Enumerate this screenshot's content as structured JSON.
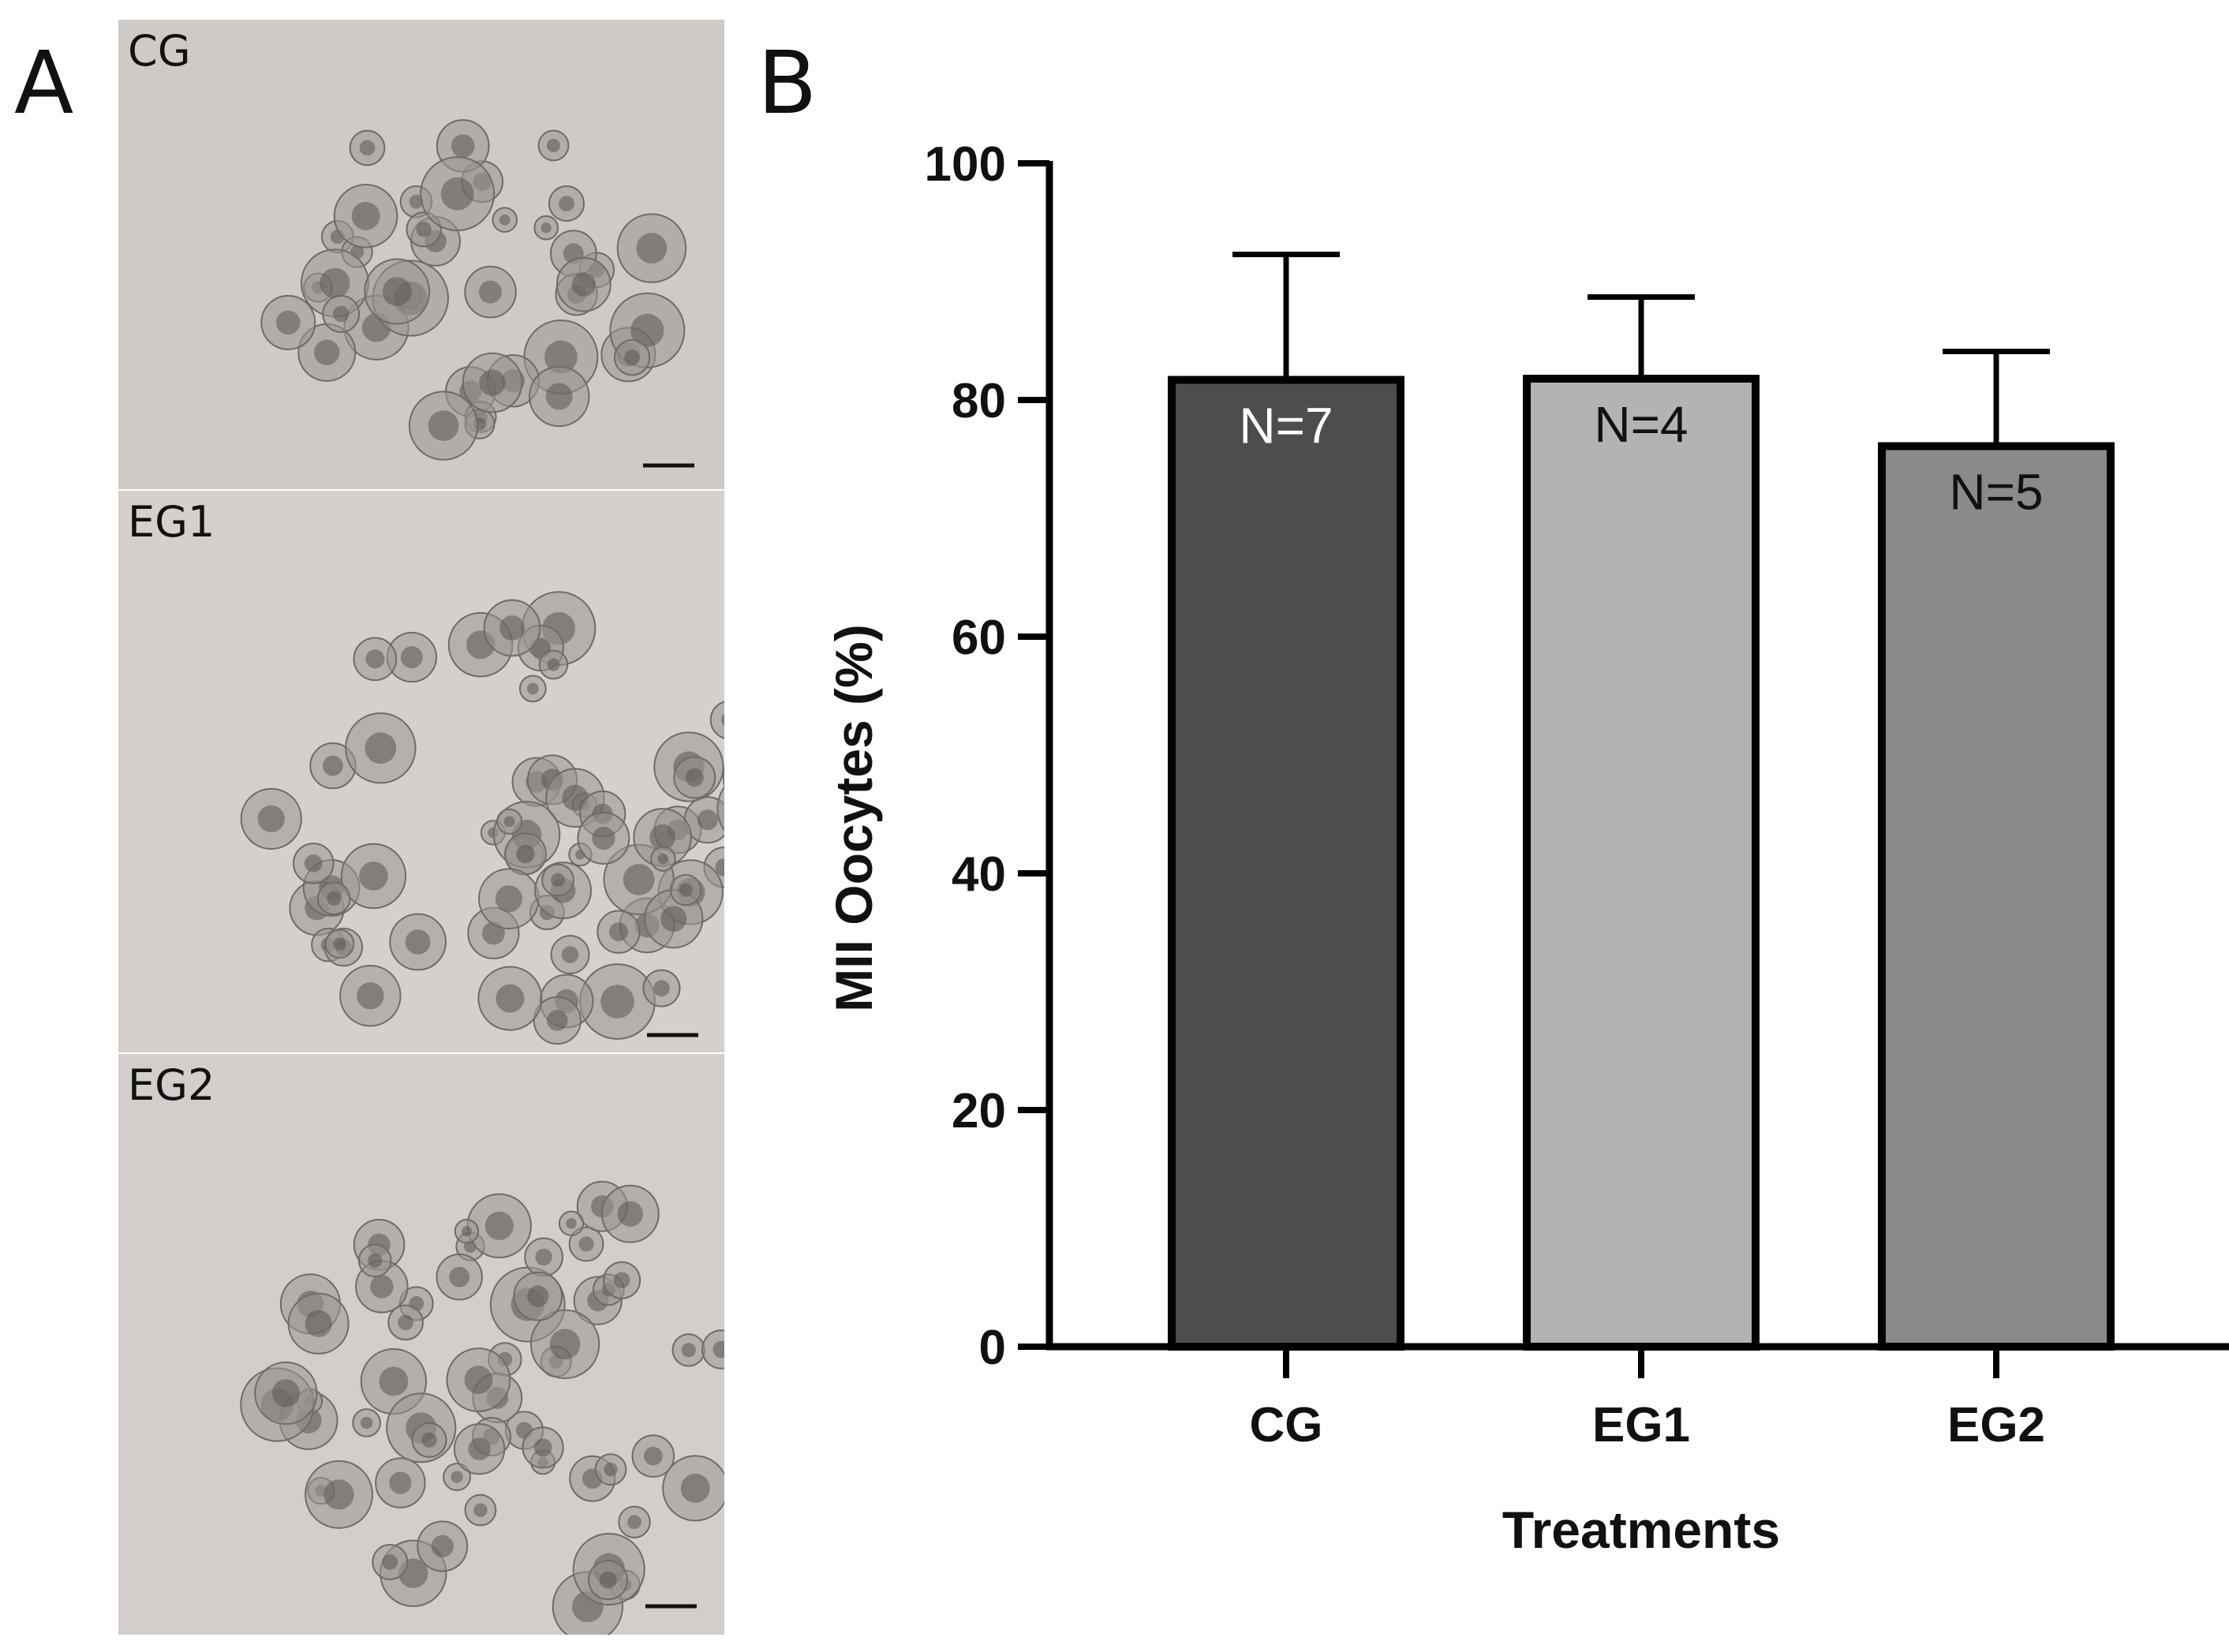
{
  "panels": {
    "a_letter": "A",
    "b_letter": "B",
    "images": [
      {
        "label": "CG",
        "icon": "oocyte-cluster-micrograph"
      },
      {
        "label": "EG1",
        "icon": "oocyte-cluster-micrograph"
      },
      {
        "label": "EG2",
        "icon": "oocyte-cluster-micrograph"
      }
    ]
  },
  "chart_data": {
    "type": "bar",
    "categories": [
      "CG",
      "EG1",
      "EG2"
    ],
    "values": [
      81.7,
      81.8,
      76.1
    ],
    "error_upper": [
      92.3,
      88.7,
      84.1
    ],
    "n_labels": [
      "N=7",
      "N=4",
      "N=5"
    ],
    "colors": [
      "#4d4d4d",
      "#b3b3b3",
      "#8a8a8a"
    ],
    "n_label_colors": [
      "#ffffff",
      "#111111",
      "#111111"
    ],
    "xlabel": "Treatments",
    "ylabel": "MII Oocytes (%)",
    "ylim": [
      0,
      100
    ],
    "yticks": [
      0,
      20,
      40,
      60,
      80,
      100
    ],
    "grid": false,
    "legend": "none"
  }
}
